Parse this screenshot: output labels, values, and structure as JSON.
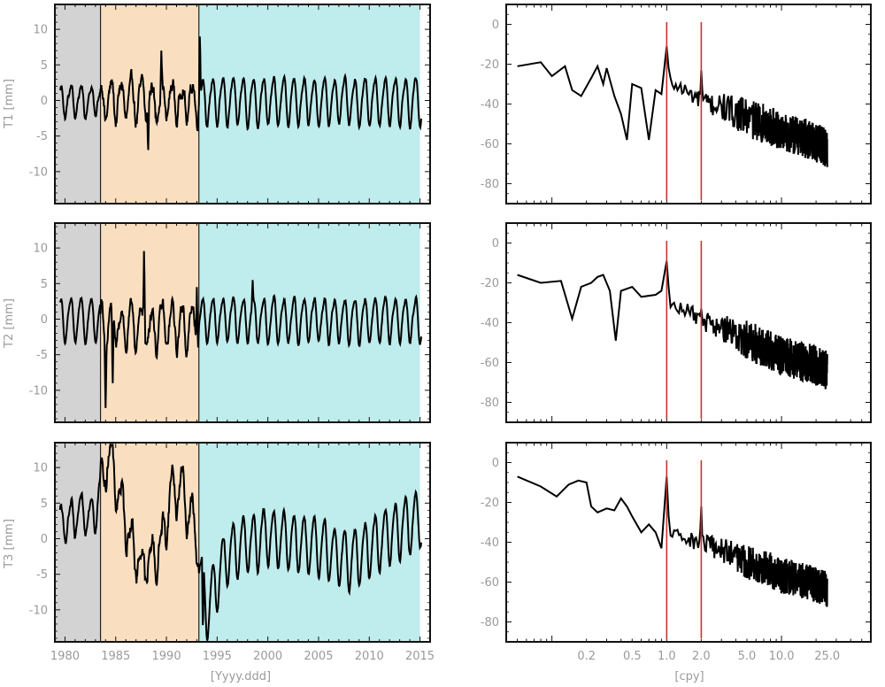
{
  "colors": {
    "frame": "#111111",
    "line": "#000000",
    "marker": "#c0392b",
    "text": "#9a9a9a",
    "bands": [
      "#d3d3d3",
      "#f9dfc0",
      "#bfecec"
    ]
  },
  "chart_data": [
    {
      "type": "line",
      "panel": "time-series",
      "ylabel": "T1 [mm]",
      "xlim": [
        1979,
        2016
      ],
      "ylim": [
        -14.5,
        13.5
      ],
      "yticks": [
        -10,
        -5,
        0,
        5,
        10
      ],
      "bands": [
        [
          1979,
          1983.5
        ],
        [
          1983.5,
          1993.2
        ],
        [
          1993.2,
          2015
        ]
      ],
      "segments": [
        {
          "t0": 1979.5,
          "t1": 1983.5,
          "offset": 0,
          "amp": 2.0,
          "noise": 1.0,
          "bias": 0
        },
        {
          "t0": 1983.5,
          "t1": 1993.2,
          "offset": 0,
          "amp": 2.5,
          "noise": 3.0,
          "bias": 0
        },
        {
          "t0": 1993.2,
          "t1": 2015.1,
          "offset": 0,
          "amp": 3.2,
          "noise": 0.8,
          "bias": 0
        }
      ],
      "spikes": [
        [
          1988.2,
          -7.5
        ],
        [
          1989.5,
          7.0
        ],
        [
          1993.3,
          9.8
        ]
      ]
    },
    {
      "type": "line",
      "panel": "spectrum",
      "xscale": "log",
      "xlim": [
        0.04,
        60
      ],
      "ylim": [
        -90,
        10
      ],
      "yticks": [
        -80,
        -60,
        -40,
        -20,
        0
      ],
      "markers": [
        1.0,
        2.0
      ],
      "peaks": [
        [
          1.0,
          -11
        ],
        [
          2.0,
          -23
        ]
      ],
      "low_freq_profile": [
        [
          0.05,
          -21
        ],
        [
          0.08,
          -19
        ],
        [
          0.1,
          -26
        ],
        [
          0.13,
          -21
        ],
        [
          0.15,
          -33
        ],
        [
          0.18,
          -36
        ],
        [
          0.22,
          -27
        ],
        [
          0.25,
          -21
        ],
        [
          0.28,
          -30
        ],
        [
          0.3,
          -22
        ],
        [
          0.35,
          -36
        ],
        [
          0.4,
          -45
        ],
        [
          0.45,
          -58
        ],
        [
          0.5,
          -30
        ],
        [
          0.6,
          -32
        ],
        [
          0.7,
          -58
        ],
        [
          0.8,
          -33
        ],
        [
          0.9,
          -35
        ],
        [
          1.0,
          -11
        ]
      ],
      "trend": [
        [
          1.0,
          -28
        ],
        [
          2.0,
          -38
        ],
        [
          5.0,
          -45
        ],
        [
          10.0,
          -52
        ],
        [
          25.0,
          -60
        ]
      ],
      "noise": 10
    },
    {
      "type": "line",
      "panel": "time-series",
      "ylabel": "T2 [mm]",
      "xlim": [
        1979,
        2016
      ],
      "ylim": [
        -14.5,
        13.5
      ],
      "yticks": [
        -10,
        -5,
        0,
        5,
        10
      ],
      "bands": [
        [
          1979,
          1983.5
        ],
        [
          1983.5,
          1993.2
        ],
        [
          1993.2,
          2015
        ]
      ],
      "segments": [
        {
          "t0": 1979.5,
          "t1": 1983.5,
          "offset": 0,
          "amp": 3.0,
          "noise": 0.6,
          "bias": 0
        },
        {
          "t0": 1983.5,
          "t1": 1993.2,
          "offset": 0,
          "amp": 3.0,
          "noise": 3.0,
          "bias": -1
        },
        {
          "t0": 1993.2,
          "t1": 2015.1,
          "offset": 0,
          "amp": 3.0,
          "noise": 0.8,
          "bias": 0
        }
      ],
      "spikes": [
        [
          1984.0,
          -12.5
        ],
        [
          1984.7,
          -10.0
        ],
        [
          1987.8,
          10.5
        ],
        [
          1993.0,
          4.5
        ],
        [
          1998.5,
          5.5
        ]
      ]
    },
    {
      "type": "line",
      "panel": "spectrum",
      "xscale": "log",
      "xlim": [
        0.04,
        60
      ],
      "ylim": [
        -90,
        10
      ],
      "yticks": [
        -80,
        -60,
        -40,
        -20,
        0
      ],
      "markers": [
        1.0,
        2.0
      ],
      "peaks": [
        [
          1.0,
          -9
        ],
        [
          2.0,
          -33
        ]
      ],
      "low_freq_profile": [
        [
          0.05,
          -16
        ],
        [
          0.08,
          -20
        ],
        [
          0.12,
          -19
        ],
        [
          0.15,
          -38
        ],
        [
          0.18,
          -22
        ],
        [
          0.22,
          -20
        ],
        [
          0.25,
          -17
        ],
        [
          0.28,
          -16
        ],
        [
          0.32,
          -24
        ],
        [
          0.36,
          -49
        ],
        [
          0.4,
          -24
        ],
        [
          0.5,
          -22
        ],
        [
          0.6,
          -27
        ],
        [
          0.8,
          -26
        ],
        [
          0.9,
          -24
        ],
        [
          1.0,
          -9
        ]
      ],
      "trend": [
        [
          1.0,
          -28
        ],
        [
          2.0,
          -38
        ],
        [
          5.0,
          -47
        ],
        [
          10.0,
          -55
        ],
        [
          25.0,
          -62
        ]
      ],
      "noise": 10
    },
    {
      "type": "line",
      "panel": "time-series",
      "ylabel": "T3 [mm]",
      "xlabel": "[Yyyy.ddd]",
      "xlim": [
        1979,
        2016
      ],
      "ylim": [
        -14.5,
        13.5
      ],
      "yticks": [
        -10,
        -5,
        0,
        5,
        10
      ],
      "xticks": [
        1980,
        1985,
        1990,
        1995,
        2000,
        2005,
        2010,
        2015
      ],
      "bands": [
        [
          1979,
          1983.5
        ],
        [
          1983.5,
          1993.2
        ],
        [
          1993.2,
          2015
        ]
      ],
      "segments": [
        {
          "t0": 1979.5,
          "t1": 1983.5,
          "offset": 0,
          "amp": 2.5,
          "noise": 1.5,
          "bias": 1
        },
        {
          "t0": 1983.5,
          "t1": 1993.2,
          "offset": 0,
          "amp": 3.0,
          "noise": 3.5,
          "bias": 1
        },
        {
          "t0": 1993.2,
          "t1": 2015.1,
          "offset": 0,
          "amp": 4.0,
          "noise": 0.9,
          "bias": 0
        }
      ],
      "slow": [
        [
          1979.5,
          1.0
        ],
        [
          1983.0,
          3.0
        ],
        [
          1984.3,
          11.5
        ],
        [
          1985.5,
          4.0
        ],
        [
          1986.3,
          0.0
        ],
        [
          1987.5,
          -5.0
        ],
        [
          1988.5,
          -4.0
        ],
        [
          1989.5,
          -2.0
        ],
        [
          1990.5,
          6.0
        ],
        [
          1991.5,
          6.0
        ],
        [
          1992.5,
          2.0
        ],
        [
          1993.5,
          -6.0
        ],
        [
          1994.0,
          -10.0
        ],
        [
          1996.0,
          -2.0
        ],
        [
          2000.0,
          0.5
        ],
        [
          2005.0,
          -1.0
        ],
        [
          2008.0,
          -3.0
        ],
        [
          2012.0,
          0.5
        ],
        [
          2015.0,
          3.0
        ]
      ],
      "spikes": [
        [
          1984.5,
          13.0
        ],
        [
          1993.6,
          -14.0
        ]
      ]
    },
    {
      "type": "line",
      "panel": "spectrum",
      "xscale": "log",
      "xlabel": "[cpy]",
      "xlim": [
        0.04,
        60
      ],
      "ylim": [
        -90,
        10
      ],
      "yticks": [
        -80,
        -60,
        -40,
        -20,
        0
      ],
      "xticks": [
        0.2,
        0.5,
        1.0,
        2.0,
        5.0,
        10.0,
        25.0
      ],
      "xticklabels": [
        "0.2",
        "0.5",
        "1.0",
        "2.0",
        "5.0",
        "10.0",
        "25.0"
      ],
      "markers": [
        1.0,
        2.0
      ],
      "peaks": [
        [
          1.0,
          -7
        ],
        [
          2.0,
          -22
        ]
      ],
      "low_freq_profile": [
        [
          0.05,
          -7
        ],
        [
          0.08,
          -12
        ],
        [
          0.11,
          -17
        ],
        [
          0.14,
          -11
        ],
        [
          0.17,
          -9
        ],
        [
          0.2,
          -10
        ],
        [
          0.22,
          -22
        ],
        [
          0.25,
          -25
        ],
        [
          0.3,
          -23
        ],
        [
          0.35,
          -24
        ],
        [
          0.4,
          -18
        ],
        [
          0.45,
          -22
        ],
        [
          0.5,
          -27
        ],
        [
          0.6,
          -35
        ],
        [
          0.7,
          -31
        ],
        [
          0.8,
          -35
        ],
        [
          0.9,
          -43
        ],
        [
          1.0,
          -7
        ]
      ],
      "trend": [
        [
          1.0,
          -35
        ],
        [
          2.0,
          -40
        ],
        [
          5.0,
          -48
        ],
        [
          10.0,
          -55
        ],
        [
          25.0,
          -62
        ]
      ],
      "noise": 9
    }
  ]
}
